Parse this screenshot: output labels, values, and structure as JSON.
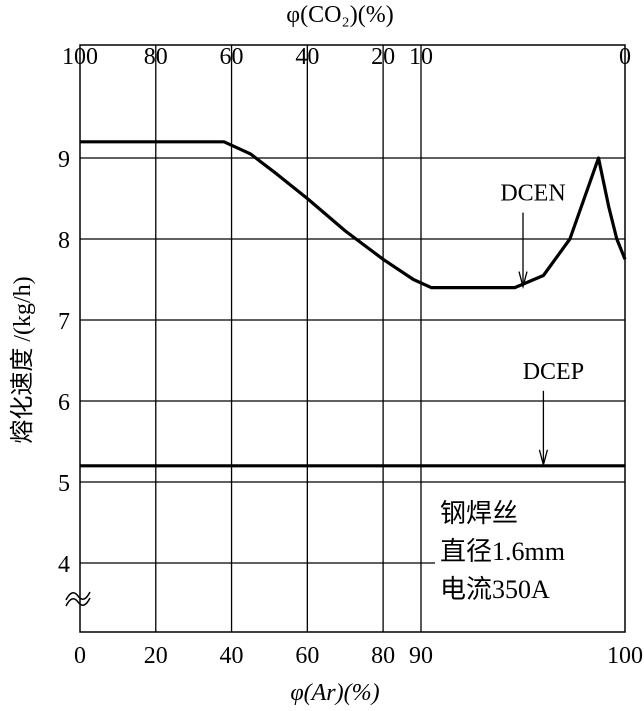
{
  "chart_data": {
    "type": "line",
    "title": "",
    "xlabel": "φ(Ar)(%)",
    "x2label": "φ(CO₂)(%)",
    "ylabel": "熔化速度 /(kg/h)",
    "x_ticks": [
      0,
      20,
      40,
      60,
      80,
      90,
      100
    ],
    "x_tick_labels": [
      "0",
      "20",
      "40",
      "60",
      "80",
      "90",
      "100"
    ],
    "x2_tick_labels": [
      "100",
      "80",
      "60",
      "40",
      "20",
      "10",
      "0"
    ],
    "y_ticks": [
      4,
      5,
      6,
      7,
      8,
      9
    ],
    "y_tick_labels": [
      "4",
      "5",
      "6",
      "7",
      "8",
      "9"
    ],
    "ylim": [
      3.0,
      10.4
    ],
    "xlim": [
      0,
      100
    ],
    "x_axis_note": "non-linear: 90–100 expanded",
    "y_axis_break": true,
    "grid": true,
    "series": [
      {
        "name": "DCEN",
        "x": [
          0,
          38,
          45,
          52,
          60,
          70,
          80,
          88,
          90.5,
          94.6,
          96,
          97.3,
          98.0,
          98.7,
          99.2,
          99.6,
          100
        ],
        "y": [
          9.2,
          9.2,
          9.05,
          8.8,
          8.5,
          8.1,
          7.75,
          7.5,
          7.4,
          7.4,
          7.55,
          8.0,
          8.5,
          9.0,
          8.4,
          8.0,
          7.75
        ]
      },
      {
        "name": "DCEP",
        "x": [
          0,
          100
        ],
        "y": [
          5.2,
          5.2
        ]
      }
    ],
    "annotations": [
      {
        "text": "DCEN",
        "points_to": [
          95,
          7.4
        ]
      },
      {
        "text": "DCEP",
        "points_to": [
          96,
          5.2
        ]
      }
    ],
    "note_lines": [
      "钢焊丝",
      "直径1.6mm",
      "电流350A"
    ]
  }
}
